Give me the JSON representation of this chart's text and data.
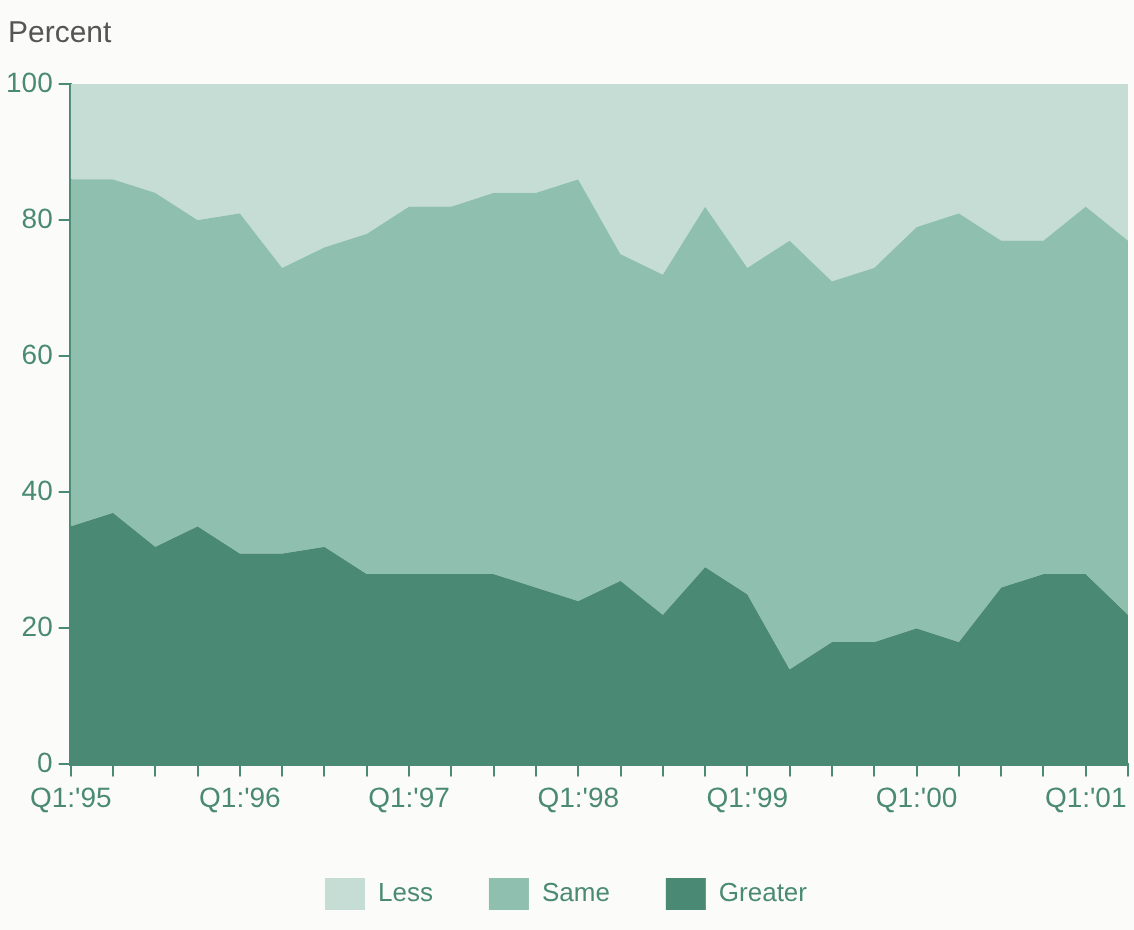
{
  "chart_data": {
    "type": "area",
    "ylabel": "Percent",
    "stacked": true,
    "grid": false,
    "legend": "bottom",
    "categories": [
      "Q1:'95",
      null,
      null,
      null,
      "Q1:'96",
      null,
      null,
      null,
      "Q1:'97",
      null,
      null,
      null,
      "Q1:'98",
      null,
      null,
      null,
      "Q1:'99",
      null,
      null,
      null,
      "Q1:'00",
      null,
      null,
      null,
      "Q1:'01",
      null
    ],
    "ylim": [
      0,
      100
    ],
    "yticks": [
      0,
      20,
      40,
      60,
      80,
      100
    ],
    "series": [
      {
        "name": "Greater",
        "color": "#4a8a75",
        "values": [
          35,
          37,
          32,
          35,
          31,
          31,
          32,
          28,
          28,
          28,
          28,
          26,
          24,
          27,
          22,
          29,
          25,
          14,
          18,
          18,
          20,
          18,
          26,
          28,
          28,
          22
        ]
      },
      {
        "name": "Same",
        "color": "#8fbfae",
        "values": [
          51,
          49,
          52,
          45,
          50,
          42,
          44,
          50,
          54,
          54,
          56,
          58,
          62,
          48,
          50,
          53,
          48,
          63,
          53,
          55,
          59,
          63,
          51,
          49,
          54,
          55
        ]
      },
      {
        "name": "Less",
        "color": "#c5ddd5",
        "values": [
          14,
          14,
          16,
          20,
          19,
          27,
          24,
          22,
          18,
          18,
          16,
          16,
          14,
          25,
          28,
          18,
          27,
          23,
          29,
          27,
          21,
          19,
          23,
          23,
          18,
          23
        ]
      }
    ]
  }
}
